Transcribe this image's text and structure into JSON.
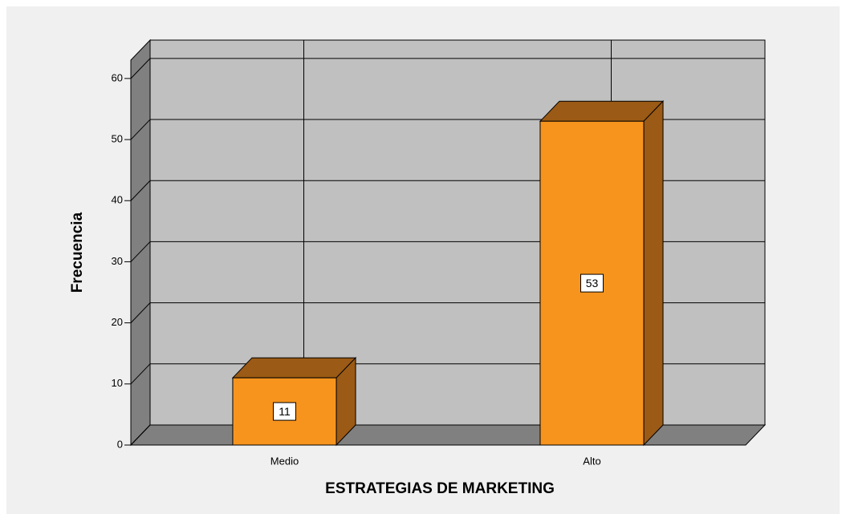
{
  "chart_data": {
    "type": "bar3d",
    "categories": [
      "Medio",
      "Alto"
    ],
    "values": [
      11,
      53
    ],
    "color": "#f7941d",
    "top_color": "#9b5a15",
    "side_color": "#9b5a15",
    "ylim": [
      0,
      63
    ],
    "yticks": [
      0,
      10,
      20,
      30,
      40,
      50,
      60
    ],
    "grid": true,
    "xlabel": "ESTRATEGIAS DE MARKETING",
    "ylabel": "Frecuencia"
  }
}
